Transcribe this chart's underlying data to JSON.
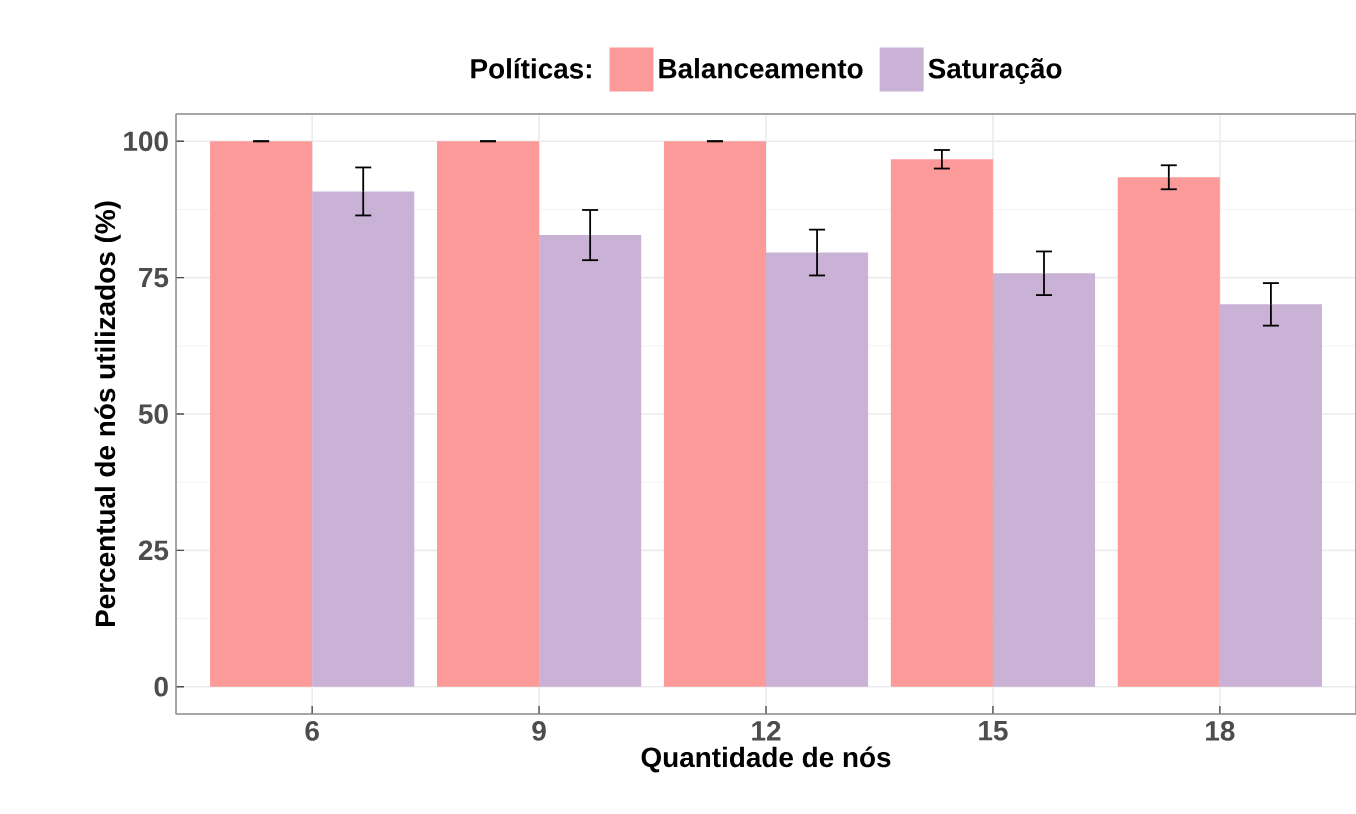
{
  "chart_data": {
    "type": "bar",
    "xlabel": "Quantidade de nós",
    "ylabel": "Percentual de nós utilizados (%)",
    "legend_title": "Políticas:",
    "categories": [
      "6",
      "9",
      "12",
      "15",
      "18"
    ],
    "series": [
      {
        "name": "Balanceamento",
        "color": "#fb9a99",
        "values": [
          100,
          100,
          100,
          96.7,
          93.4
        ],
        "errors": [
          0,
          0,
          0,
          1.7,
          2.2
        ]
      },
      {
        "name": "Saturação",
        "color": "#cab2d6",
        "values": [
          90.8,
          82.8,
          79.6,
          75.8,
          70.1
        ],
        "errors": [
          4.4,
          4.6,
          4.2,
          4.0,
          3.9
        ]
      }
    ],
    "ylim": [
      -5,
      105
    ],
    "yticks": [
      0,
      25,
      50,
      75,
      100
    ],
    "grid": true,
    "legend": "top"
  }
}
